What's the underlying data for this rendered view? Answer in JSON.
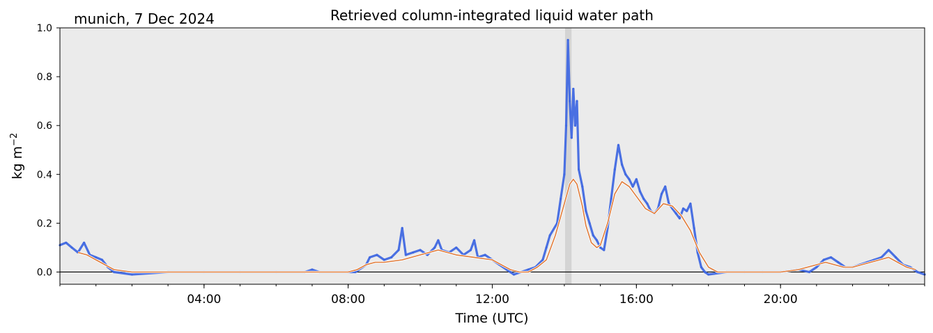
{
  "chart_data": {
    "type": "line",
    "title": "Retrieved column-integrated liquid water path",
    "subtitle": "munich, 7 Dec 2024",
    "xlabel": "Time (UTC)",
    "ylabel": "kg m",
    "ylabel_sup": "−2",
    "xlim": [
      0,
      24
    ],
    "ylim": [
      -0.05,
      1.0
    ],
    "x_ticks": [
      4,
      8,
      12,
      16,
      20
    ],
    "x_tick_labels": [
      "04:00",
      "08:00",
      "12:00",
      "16:00",
      "20:00"
    ],
    "y_ticks": [
      0.0,
      0.2,
      0.4,
      0.6,
      0.8,
      1.0
    ],
    "y_tick_labels": [
      "0.0",
      "0.2",
      "0.4",
      "0.6",
      "0.8",
      "1.0"
    ],
    "grid": false,
    "legend": "none",
    "background_color": "#ebebeb",
    "zero_line": true,
    "shaded_spans": [
      [
        14.02,
        14.2
      ]
    ],
    "series": [
      {
        "style": "raw-scatter",
        "color": "#4169e1",
        "x": [
          0.0,
          0.17,
          0.33,
          0.5,
          0.67,
          0.83,
          1.0,
          1.17,
          1.33,
          1.5,
          2.0,
          3.0,
          4.0,
          5.0,
          6.0,
          6.8,
          7.0,
          7.2,
          8.0,
          8.2,
          8.4,
          8.5,
          8.6,
          8.8,
          9.0,
          9.2,
          9.4,
          9.5,
          9.6,
          9.8,
          10.0,
          10.2,
          10.4,
          10.5,
          10.6,
          10.8,
          11.0,
          11.2,
          11.4,
          11.5,
          11.6,
          11.8,
          12.0,
          12.2,
          12.4,
          12.5,
          12.6,
          12.8,
          13.0,
          13.2,
          13.4,
          13.5,
          13.6,
          13.8,
          13.9,
          14.0,
          14.05,
          14.1,
          14.15,
          14.2,
          14.25,
          14.3,
          14.35,
          14.4,
          14.5,
          14.6,
          14.7,
          14.8,
          14.9,
          15.0,
          15.1,
          15.2,
          15.3,
          15.4,
          15.5,
          15.6,
          15.7,
          15.8,
          15.9,
          16.0,
          16.1,
          16.2,
          16.3,
          16.4,
          16.5,
          16.6,
          16.7,
          16.8,
          16.9,
          17.0,
          17.1,
          17.2,
          17.3,
          17.4,
          17.5,
          17.6,
          17.7,
          17.8,
          17.9,
          18.0,
          18.5,
          19.0,
          19.5,
          20.0,
          20.5,
          20.8,
          21.0,
          21.2,
          21.4,
          21.6,
          21.8,
          22.0,
          22.2,
          22.4,
          22.6,
          22.8,
          23.0,
          23.2,
          23.4,
          23.6,
          23.8,
          24.0
        ],
        "y": [
          0.11,
          0.12,
          0.1,
          0.08,
          0.12,
          0.07,
          0.06,
          0.05,
          0.02,
          0.0,
          -0.01,
          0.0,
          0.0,
          0.0,
          0.0,
          0.0,
          0.01,
          0.0,
          0.0,
          0.0,
          0.02,
          0.03,
          0.06,
          0.07,
          0.05,
          0.06,
          0.09,
          0.18,
          0.07,
          0.08,
          0.09,
          0.07,
          0.1,
          0.13,
          0.09,
          0.08,
          0.1,
          0.07,
          0.09,
          0.13,
          0.06,
          0.07,
          0.05,
          0.03,
          0.01,
          0.0,
          -0.01,
          0.0,
          0.01,
          0.02,
          0.05,
          0.1,
          0.15,
          0.2,
          0.3,
          0.4,
          0.6,
          0.95,
          0.7,
          0.55,
          0.75,
          0.6,
          0.7,
          0.42,
          0.35,
          0.25,
          0.2,
          0.15,
          0.13,
          0.1,
          0.09,
          0.18,
          0.3,
          0.42,
          0.52,
          0.44,
          0.4,
          0.38,
          0.35,
          0.38,
          0.33,
          0.3,
          0.28,
          0.25,
          0.24,
          0.26,
          0.32,
          0.35,
          0.28,
          0.26,
          0.24,
          0.22,
          0.26,
          0.25,
          0.28,
          0.18,
          0.08,
          0.02,
          0.0,
          -0.01,
          0.0,
          0.0,
          0.0,
          0.0,
          0.01,
          0.0,
          0.02,
          0.05,
          0.06,
          0.04,
          0.02,
          0.02,
          0.03,
          0.04,
          0.05,
          0.06,
          0.09,
          0.06,
          0.03,
          0.02,
          0.0,
          -0.01
        ]
      },
      {
        "style": "smoothed-line",
        "color": "#e07b39",
        "x": [
          0.5,
          0.75,
          1.0,
          1.25,
          1.5,
          2.0,
          3.0,
          4.0,
          5.0,
          6.0,
          7.0,
          8.0,
          8.25,
          8.5,
          8.75,
          9.0,
          9.5,
          10.0,
          10.25,
          10.5,
          10.75,
          11.0,
          11.5,
          12.0,
          12.25,
          12.5,
          12.75,
          13.0,
          13.25,
          13.5,
          13.75,
          14.0,
          14.15,
          14.25,
          14.35,
          14.5,
          14.6,
          14.75,
          14.9,
          15.0,
          15.2,
          15.4,
          15.6,
          15.8,
          16.0,
          16.25,
          16.5,
          16.75,
          17.0,
          17.25,
          17.5,
          17.75,
          18.0,
          18.25,
          18.5,
          19.0,
          20.0,
          20.5,
          20.75,
          21.0,
          21.25,
          21.5,
          21.75,
          22.0,
          22.25,
          22.5,
          22.75,
          23.0,
          23.25,
          23.5,
          23.75
        ],
        "y": [
          0.08,
          0.07,
          0.05,
          0.03,
          0.01,
          0.0,
          0.0,
          0.0,
          0.0,
          0.0,
          0.0,
          0.0,
          0.01,
          0.03,
          0.04,
          0.04,
          0.05,
          0.07,
          0.08,
          0.09,
          0.08,
          0.07,
          0.06,
          0.05,
          0.03,
          0.01,
          0.0,
          0.0,
          0.02,
          0.05,
          0.15,
          0.28,
          0.36,
          0.38,
          0.36,
          0.27,
          0.19,
          0.12,
          0.1,
          0.11,
          0.2,
          0.32,
          0.37,
          0.35,
          0.31,
          0.26,
          0.24,
          0.28,
          0.27,
          0.23,
          0.17,
          0.08,
          0.02,
          0.0,
          0.0,
          0.0,
          0.0,
          0.01,
          0.02,
          0.03,
          0.04,
          0.03,
          0.02,
          0.02,
          0.03,
          0.04,
          0.05,
          0.06,
          0.04,
          0.02,
          0.01
        ]
      }
    ]
  }
}
